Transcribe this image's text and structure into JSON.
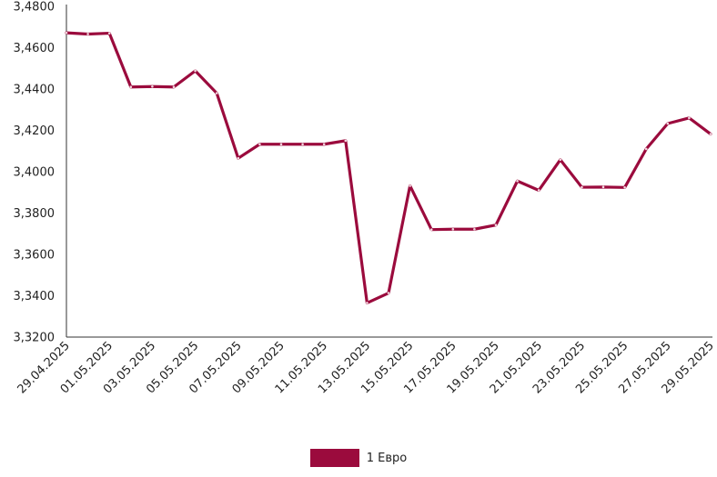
{
  "chart_data": {
    "type": "line",
    "title": "",
    "xlabel": "",
    "ylabel": "",
    "ylim": [
      3.32,
      3.48
    ],
    "y_ticks": [
      "3,3200",
      "3,3400",
      "3,3600",
      "3,3800",
      "3,4000",
      "3,4200",
      "3,4400",
      "3,4600",
      "3,4800"
    ],
    "x": [
      "29.04.2025",
      "30.04.2025",
      "01.05.2025",
      "02.05.2025",
      "03.05.2025",
      "04.05.2025",
      "05.05.2025",
      "06.05.2025",
      "07.05.2025",
      "08.05.2025",
      "09.05.2025",
      "10.05.2025",
      "11.05.2025",
      "12.05.2025",
      "13.05.2025",
      "14.05.2025",
      "15.05.2025",
      "16.05.2025",
      "17.05.2025",
      "18.05.2025",
      "19.05.2025",
      "20.05.2025",
      "21.05.2025",
      "22.05.2025",
      "23.05.2025",
      "24.05.2025",
      "25.05.2025",
      "26.05.2025",
      "27.05.2025",
      "28.05.2025",
      "29.05.2025"
    ],
    "x_tick_labels": [
      "29.04.2025",
      "01.05.2025",
      "03.05.2025",
      "05.05.2025",
      "07.05.2025",
      "09.05.2025",
      "11.05.2025",
      "13.05.2025",
      "15.05.2025",
      "17.05.2025",
      "19.05.2025",
      "21.05.2025",
      "23.05.2025",
      "25.05.2025",
      "27.05.2025",
      "29.05.2025"
    ],
    "series": [
      {
        "name": "1 Евро",
        "color": "#9b0b3d",
        "values": [
          3.4672,
          3.4666,
          3.467,
          3.441,
          3.4412,
          3.441,
          3.4488,
          3.438,
          3.4065,
          3.4133,
          3.4133,
          3.4133,
          3.4133,
          3.415,
          3.3365,
          3.3413,
          3.3932,
          3.372,
          3.3722,
          3.3722,
          3.3742,
          3.3955,
          3.391,
          3.4058,
          3.3925,
          3.3926,
          3.3924,
          3.411,
          3.4233,
          3.426,
          3.4182
        ]
      }
    ],
    "grid": false,
    "legend_position": "bottom-center"
  }
}
